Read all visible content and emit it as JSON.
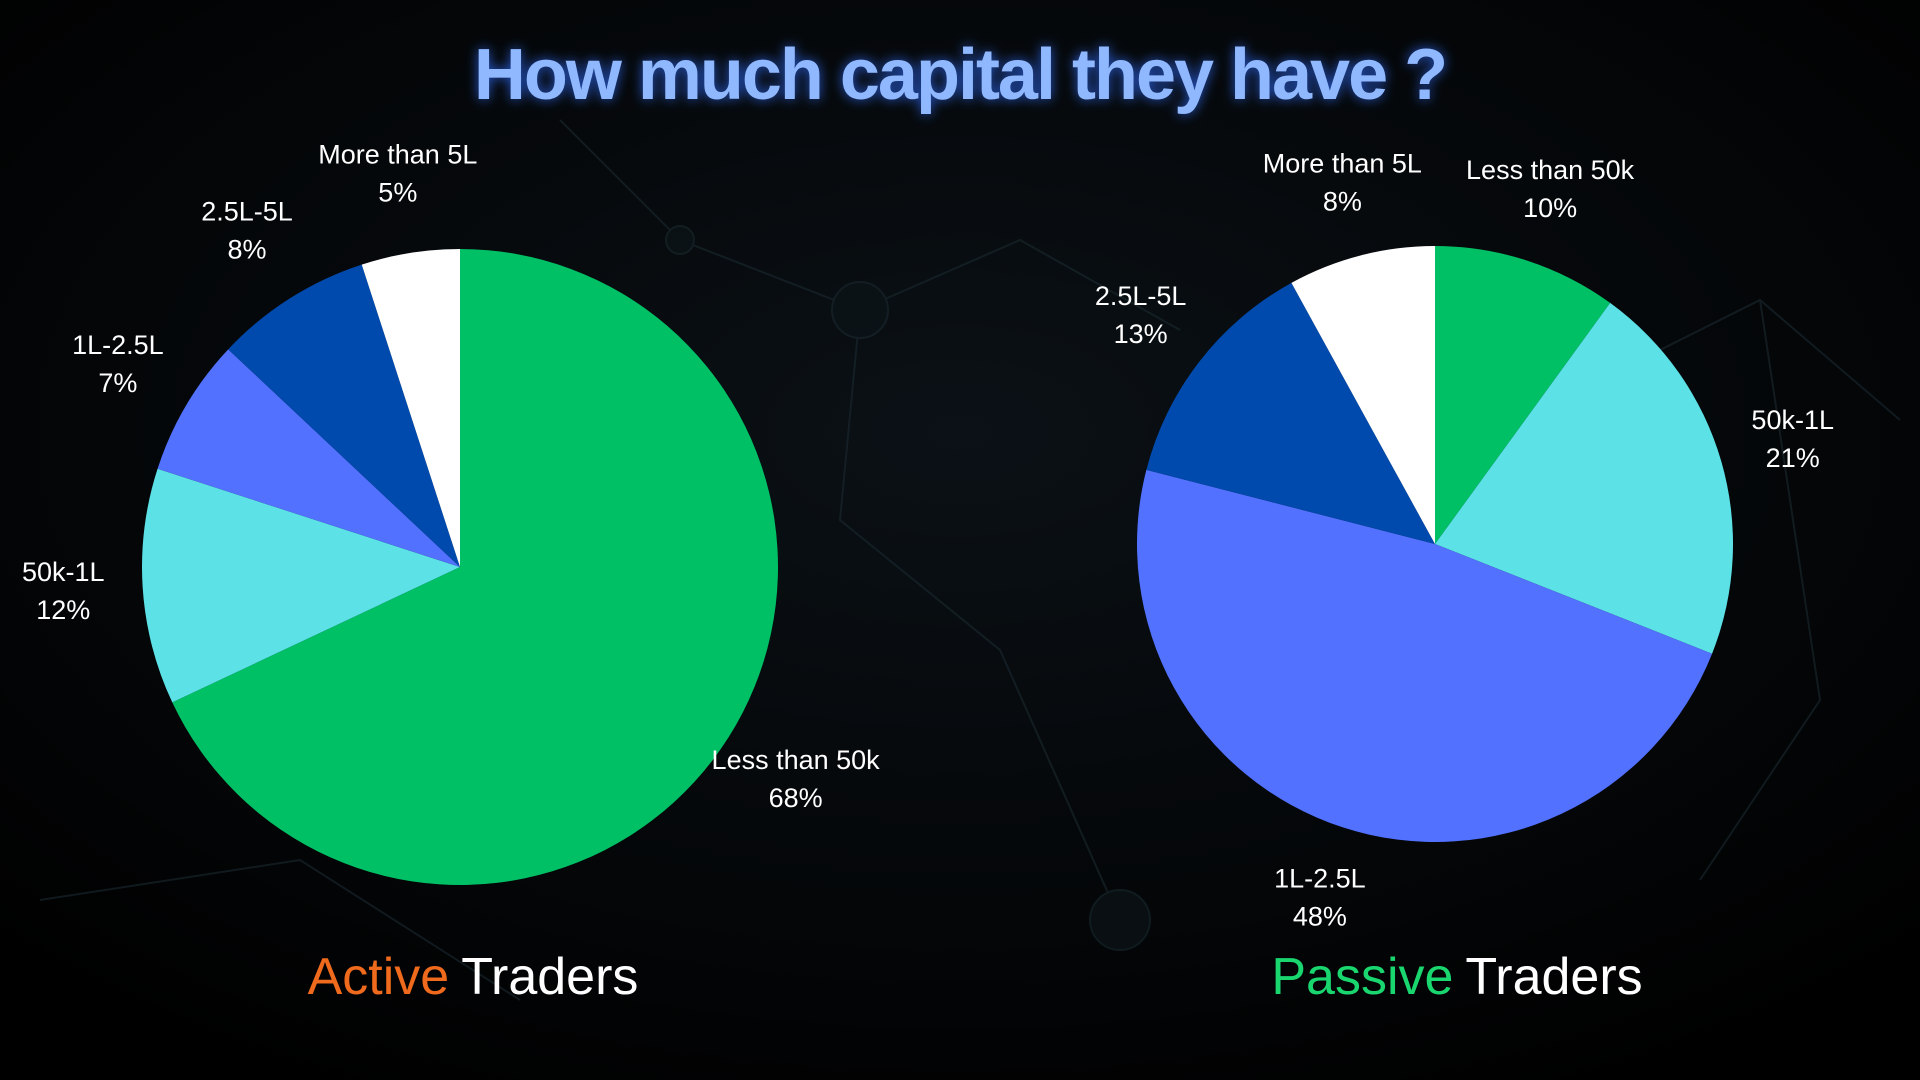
{
  "title": "How much capital they have ?",
  "chart_data": [
    {
      "type": "pie",
      "title_words": [
        {
          "text": "Active",
          "color": "#ef6a1c"
        },
        {
          "text": "Traders",
          "color": "#ffffff"
        }
      ],
      "categories": [
        "Less than 50k",
        "50k-1L",
        "1L-2.5L",
        "2.5L-5L",
        "More than 5L"
      ],
      "values": [
        68,
        12,
        7,
        8,
        5
      ],
      "value_labels": [
        "68%",
        "12%",
        "7%",
        "8%",
        "5%"
      ],
      "colors": [
        "#00c065",
        "#5ce1e6",
        "#5271ff",
        "#004aad",
        "#ffffff"
      ]
    },
    {
      "type": "pie",
      "title_words": [
        {
          "text": "Passive",
          "color": "#19d66f"
        },
        {
          "text": "Traders",
          "color": "#ffffff"
        }
      ],
      "categories": [
        "Less than 50k",
        "50k-1L",
        "1L-2.5L",
        "2.5L-5L",
        "More than 5L"
      ],
      "values": [
        10,
        21,
        48,
        13,
        8
      ],
      "value_labels": [
        "10%",
        "21%",
        "48%",
        "13%",
        "8%"
      ],
      "colors": [
        "#00c065",
        "#5ce1e6",
        "#5271ff",
        "#004aad",
        "#ffffff"
      ]
    }
  ]
}
